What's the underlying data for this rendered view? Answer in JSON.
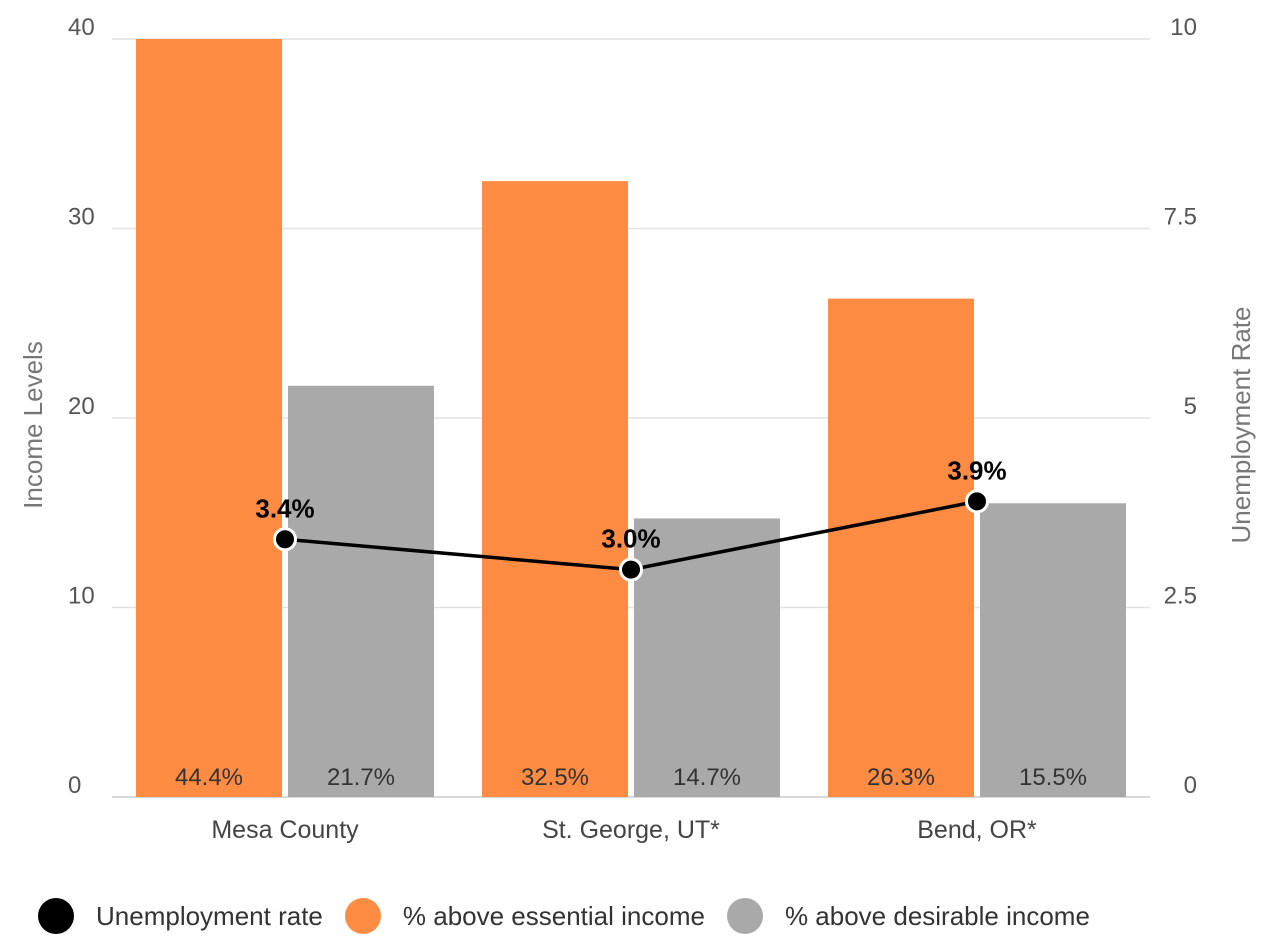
{
  "chart_data": {
    "type": "bar",
    "categories": [
      "Mesa County",
      "St. George, UT*",
      "Bend, OR*"
    ],
    "series": [
      {
        "name": "% above essential income",
        "kind": "bar",
        "axis": "left",
        "color": "#ff8c42",
        "values": [
          44.4,
          32.5,
          26.3
        ],
        "labels": [
          "44.4%",
          "32.5%",
          "26.3%"
        ]
      },
      {
        "name": "% above desirable income",
        "kind": "bar",
        "axis": "left",
        "color": "#a9a9a9",
        "values": [
          21.7,
          14.7,
          15.5
        ],
        "labels": [
          "21.7%",
          "14.7%",
          "15.5%"
        ]
      },
      {
        "name": "Unemployment rate",
        "kind": "line",
        "axis": "right",
        "color": "#000000",
        "values": [
          3.4,
          3.0,
          3.9
        ],
        "labels": [
          "3.4%",
          "3.0%",
          "3.9%"
        ]
      }
    ],
    "y_left": {
      "label": "Income Levels",
      "ylim": [
        0,
        40
      ],
      "ticks": [
        "0",
        "10",
        "20",
        "30",
        "40"
      ]
    },
    "y_right": {
      "label": "Unemployment Rate",
      "ylim": [
        0,
        10
      ],
      "ticks": [
        "0",
        "2.5",
        "5",
        "7.5",
        "10"
      ]
    },
    "grid": true,
    "legend_position": "bottom"
  }
}
